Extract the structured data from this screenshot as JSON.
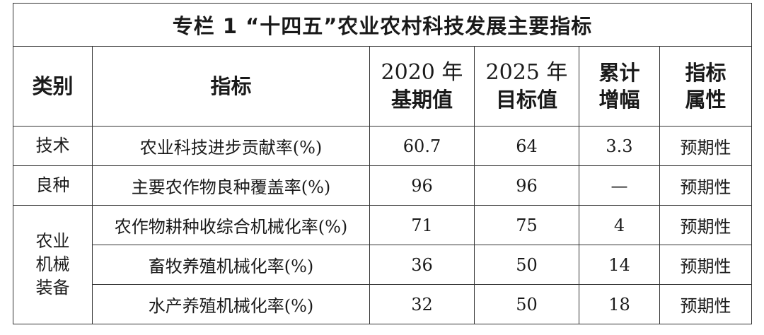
{
  "title": "专栏 1 “十四五”农业农村科技发展主要指标",
  "header": {
    "category": "类别",
    "indicator": "指标",
    "base_line1": "2020 年",
    "base_line2": "基期值",
    "target_line1": "2025 年",
    "target_line2": "目标值",
    "increase_line1": "累计",
    "increase_line2": "增幅",
    "attr_line1": "指标",
    "attr_line2": "属性"
  },
  "groups": [
    {
      "category_lines": [
        "技术"
      ]
    },
    {
      "category_lines": [
        "良种"
      ]
    },
    {
      "category_lines": [
        "农业",
        "机械",
        "装备"
      ]
    }
  ],
  "rows": [
    {
      "indicator": "农业科技进步贡献率(%)",
      "base": "60.7",
      "target": "64",
      "increase": "3.3",
      "attribute": "预期性"
    },
    {
      "indicator": "主要农作物良种覆盖率(%)",
      "base": "96",
      "target": "96",
      "increase": "—",
      "attribute": "预期性"
    },
    {
      "indicator": "农作物耕种收综合机械化率(%)",
      "base": "71",
      "target": "75",
      "increase": "4",
      "attribute": "预期性"
    },
    {
      "indicator": "畜牧养殖机械化率(%)",
      "base": "36",
      "target": "50",
      "increase": "14",
      "attribute": "预期性"
    },
    {
      "indicator": "水产养殖机械化率(%)",
      "base": "32",
      "target": "50",
      "increase": "18",
      "attribute": "预期性"
    }
  ]
}
